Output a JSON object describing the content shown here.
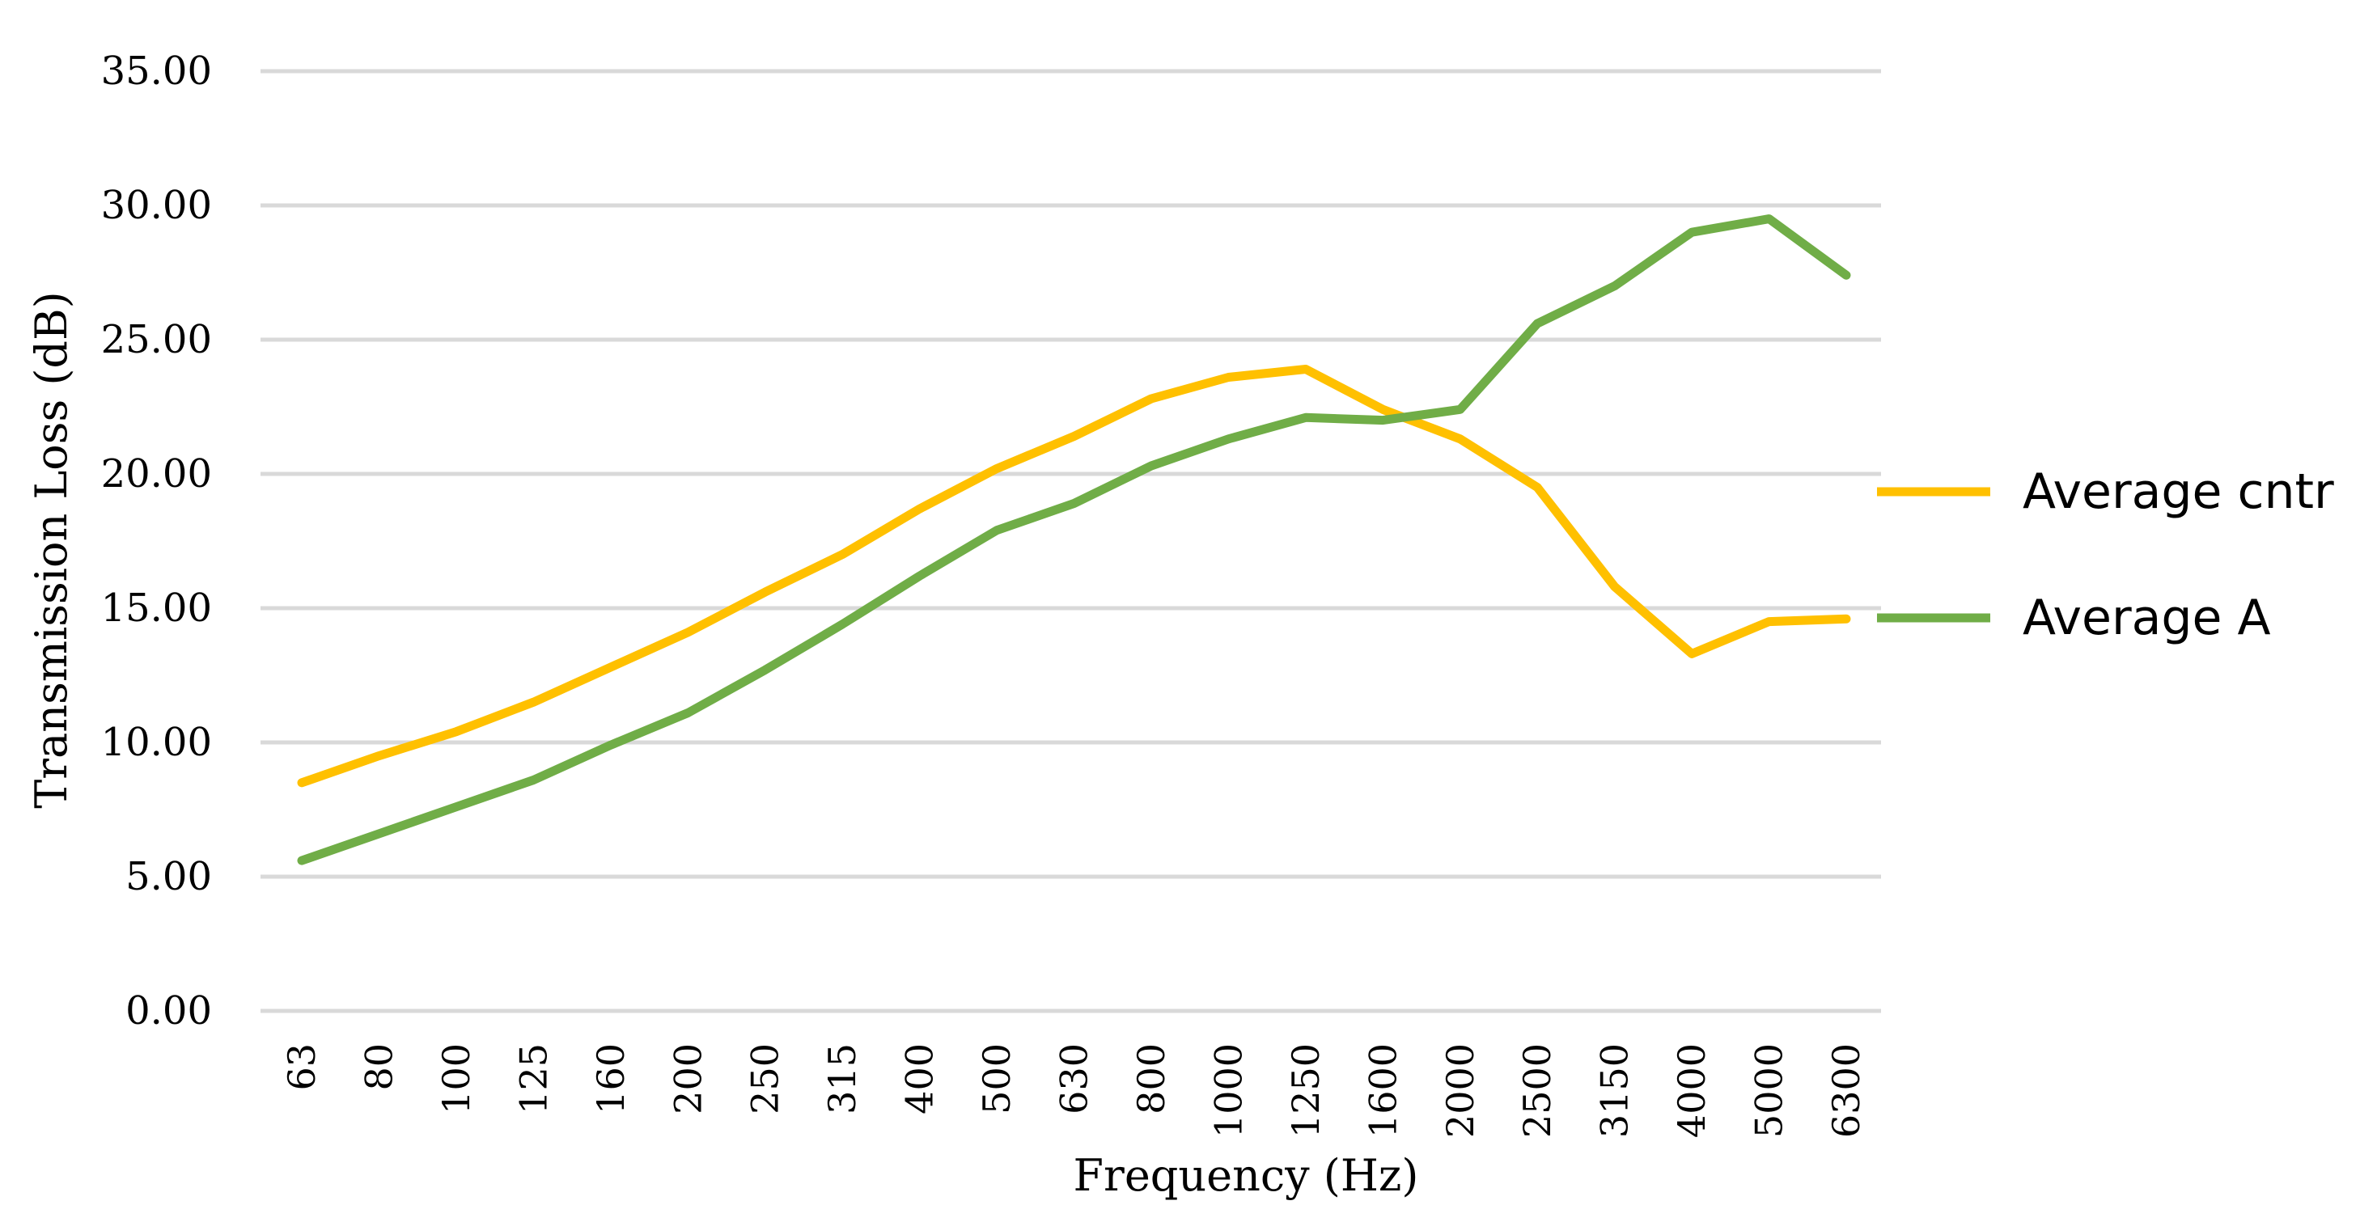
{
  "chart_data": {
    "type": "line",
    "title": "",
    "xlabel": "Frequency  (Hz)",
    "ylabel": "Transmission Loss (dB)",
    "ylim": [
      0,
      35
    ],
    "yticks": [
      "0.00",
      "5.00",
      "10.00",
      "15.00",
      "20.00",
      "25.00",
      "30.00",
      "35.00"
    ],
    "ytick_values": [
      0,
      5,
      10,
      15,
      20,
      25,
      30,
      35
    ],
    "grid": true,
    "legend_position": "right",
    "categories": [
      "63",
      "80",
      "100",
      "125",
      "160",
      "200",
      "250",
      "315",
      "400",
      "500",
      "630",
      "800",
      "1000",
      "1250",
      "1600",
      "2000",
      "2500",
      "3150",
      "4000",
      "5000",
      "6300"
    ],
    "series": [
      {
        "name": "Average cntr",
        "color": "#FFC000",
        "values": [
          8.5,
          9.5,
          10.4,
          11.5,
          12.8,
          14.1,
          15.6,
          17.0,
          18.7,
          20.2,
          21.4,
          22.8,
          23.6,
          23.9,
          22.4,
          21.3,
          19.5,
          15.8,
          13.3,
          14.5,
          14.6
        ]
      },
      {
        "name": "Average A",
        "color": "#70AD47",
        "values": [
          5.6,
          6.6,
          7.6,
          8.6,
          9.9,
          11.1,
          12.7,
          14.4,
          16.2,
          17.9,
          18.9,
          20.3,
          21.3,
          22.1,
          22.0,
          22.4,
          25.6,
          27.0,
          29.0,
          29.5,
          27.4
        ]
      }
    ]
  }
}
